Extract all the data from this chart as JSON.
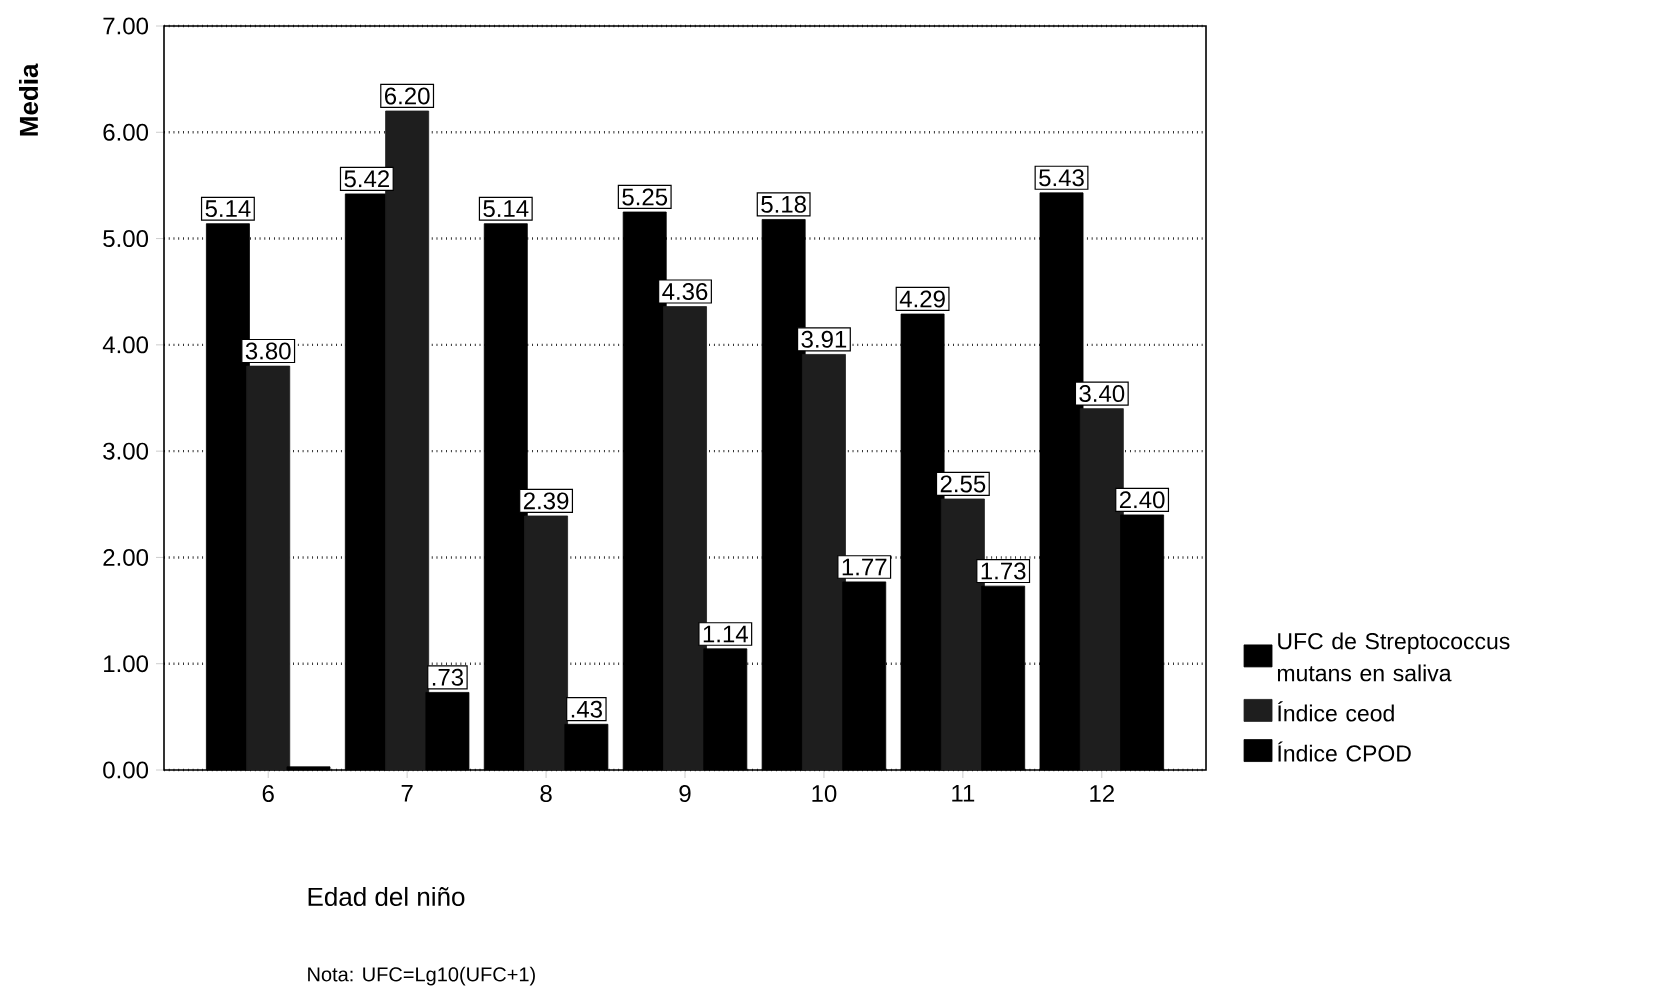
{
  "chart_data": {
    "type": "bar",
    "xlabel": "Edad del niño",
    "ylabel": "Media",
    "categories": [
      "6",
      "7",
      "8",
      "9",
      "10",
      "11",
      "12"
    ],
    "series": [
      {
        "name": "UFC de Streptococcus mutans en saliva",
        "color": "#000000",
        "values": [
          5.14,
          5.42,
          5.14,
          5.25,
          5.18,
          4.29,
          5.43
        ],
        "value_labels": [
          "5.14",
          "5.42",
          "5.14",
          "5.25",
          "5.18",
          "4.29",
          "5.43"
        ]
      },
      {
        "name": "Índice ceod",
        "color": "#1e1e1e",
        "values": [
          3.8,
          6.2,
          2.39,
          4.36,
          3.91,
          2.55,
          3.4
        ],
        "value_labels": [
          "3.80",
          "6.20",
          "2.39",
          "4.36",
          "3.91",
          "2.55",
          "3.40"
        ]
      },
      {
        "name": "Índice CPOD",
        "color": "#000000",
        "values": [
          0.03,
          0.73,
          0.43,
          1.14,
          1.77,
          1.73,
          2.4
        ],
        "value_labels": [
          null,
          ".73",
          ".43",
          "1.14",
          "1.77",
          "1.73",
          "2.40"
        ]
      }
    ],
    "ylim": [
      0,
      7
    ],
    "yticks": [
      {
        "value": 0,
        "label": "0.00"
      },
      {
        "value": 1,
        "label": "1.00"
      },
      {
        "value": 2,
        "label": "2.00"
      },
      {
        "value": 3,
        "label": "3.00"
      },
      {
        "value": 4,
        "label": "4.00"
      },
      {
        "value": 5,
        "label": "5.00"
      },
      {
        "value": 6,
        "label": "6.00"
      },
      {
        "value": 7,
        "label": "7.00"
      }
    ],
    "grid": "y",
    "legend": "right",
    "annotations": [
      "Nota: UFC=Lg10(UFC+1)"
    ]
  }
}
